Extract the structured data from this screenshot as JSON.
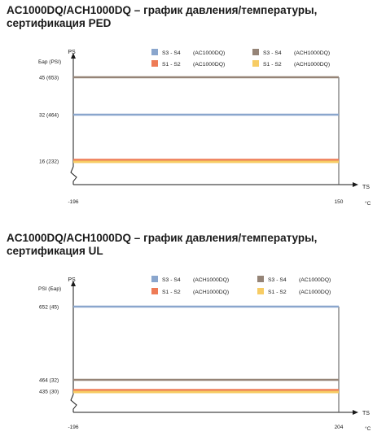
{
  "chart_data": [
    {
      "type": "line",
      "title": "AC1000DQ/ACH1000DQ – график давления/температуры, сертификация PED",
      "y_symbol": "PS",
      "y_unit": "Бар (PSI)",
      "x_symbol": "TS",
      "x_unit": "°C",
      "x_ticks": [
        "-196",
        "150"
      ],
      "x_range": [
        -196,
        150
      ],
      "y_range": [
        0,
        50
      ],
      "y_ticks": [
        "45  (653)",
        "32  (464)",
        "16  (232)"
      ],
      "legend_position": "top-right",
      "series": [
        {
          "name": "S3 - S4",
          "model": "(AC1000DQ)",
          "color": "#8aa6cd",
          "x": [
            -196,
            150
          ],
          "y": [
            32,
            32
          ]
        },
        {
          "name": "S3 - S4",
          "model": "(ACH1000DQ)",
          "color": "#958477",
          "x": [
            -196,
            150
          ],
          "y": [
            45,
            45
          ]
        },
        {
          "name": "S1 - S2",
          "model": "(AC1000DQ)",
          "color": "#ee7b56",
          "x": [
            -196,
            150
          ],
          "y": [
            16,
            16
          ]
        },
        {
          "name": "S1 - S2",
          "model": "(ACH1000DQ)",
          "color": "#f7cc64",
          "x": [
            -196,
            150
          ],
          "y": [
            16,
            16
          ]
        }
      ]
    },
    {
      "type": "line",
      "title": "AC1000DQ/ACH1000DQ – график давления/температуры, сертификация UL",
      "y_symbol": "PS",
      "y_unit": "PSI (Бар)",
      "x_symbol": "TS",
      "x_unit": "°C",
      "x_ticks": [
        "-196",
        "204"
      ],
      "x_range": [
        -196,
        204
      ],
      "y_range": [
        0,
        700
      ],
      "y_ticks": [
        "652 (45)",
        "464 (32)",
        "435 (30)"
      ],
      "legend_position": "top-right",
      "series": [
        {
          "name": "S3 - S4",
          "model": "(ACH1000DQ)",
          "color": "#8aa6cd",
          "x": [
            -196,
            204
          ],
          "y": [
            652,
            652
          ]
        },
        {
          "name": "S3 - S4",
          "model": "(AC1000DQ)",
          "color": "#958477",
          "x": [
            -196,
            204
          ],
          "y": [
            464,
            464
          ]
        },
        {
          "name": "S1 - S2",
          "model": "(ACH1000DQ)",
          "color": "#ee7b56",
          "x": [
            -196,
            204
          ],
          "y": [
            435,
            435
          ]
        },
        {
          "name": "S1 - S2",
          "model": "(AC1000DQ)",
          "color": "#f7cc64",
          "x": [
            -196,
            204
          ],
          "y": [
            435,
            435
          ]
        }
      ]
    }
  ]
}
